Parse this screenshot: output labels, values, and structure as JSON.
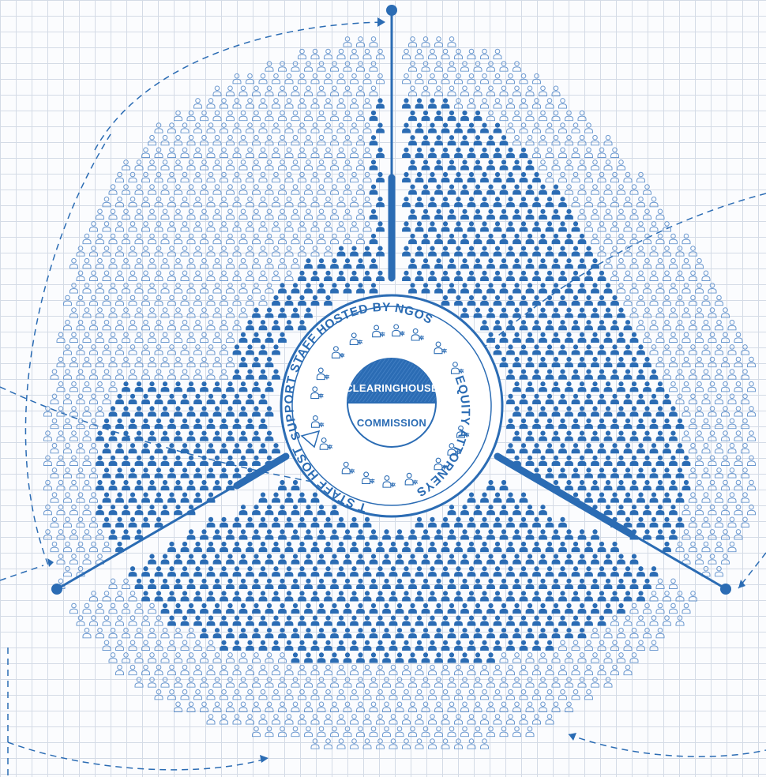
{
  "labels": {
    "top_ring": "SUPPORT STAFF HOSTED BY NGOS",
    "right_ring": "EQUITY ATTORNEYS",
    "bottom_ring": "AND SUPPORT STAFF HOSTED BY NGOS",
    "hub_top": "CLEARINGHOUSE",
    "hub_bottom": "COMMISSION"
  },
  "colors": {
    "primary": "#2b6cb4",
    "outline": "#6b98cf",
    "grid": "#d4dbe6",
    "background": "#fbfcfe"
  },
  "icons": {
    "filled_person": "person-filled-icon",
    "outline_person": "person-outline-icon",
    "attorney": "attorney-scale-icon"
  }
}
